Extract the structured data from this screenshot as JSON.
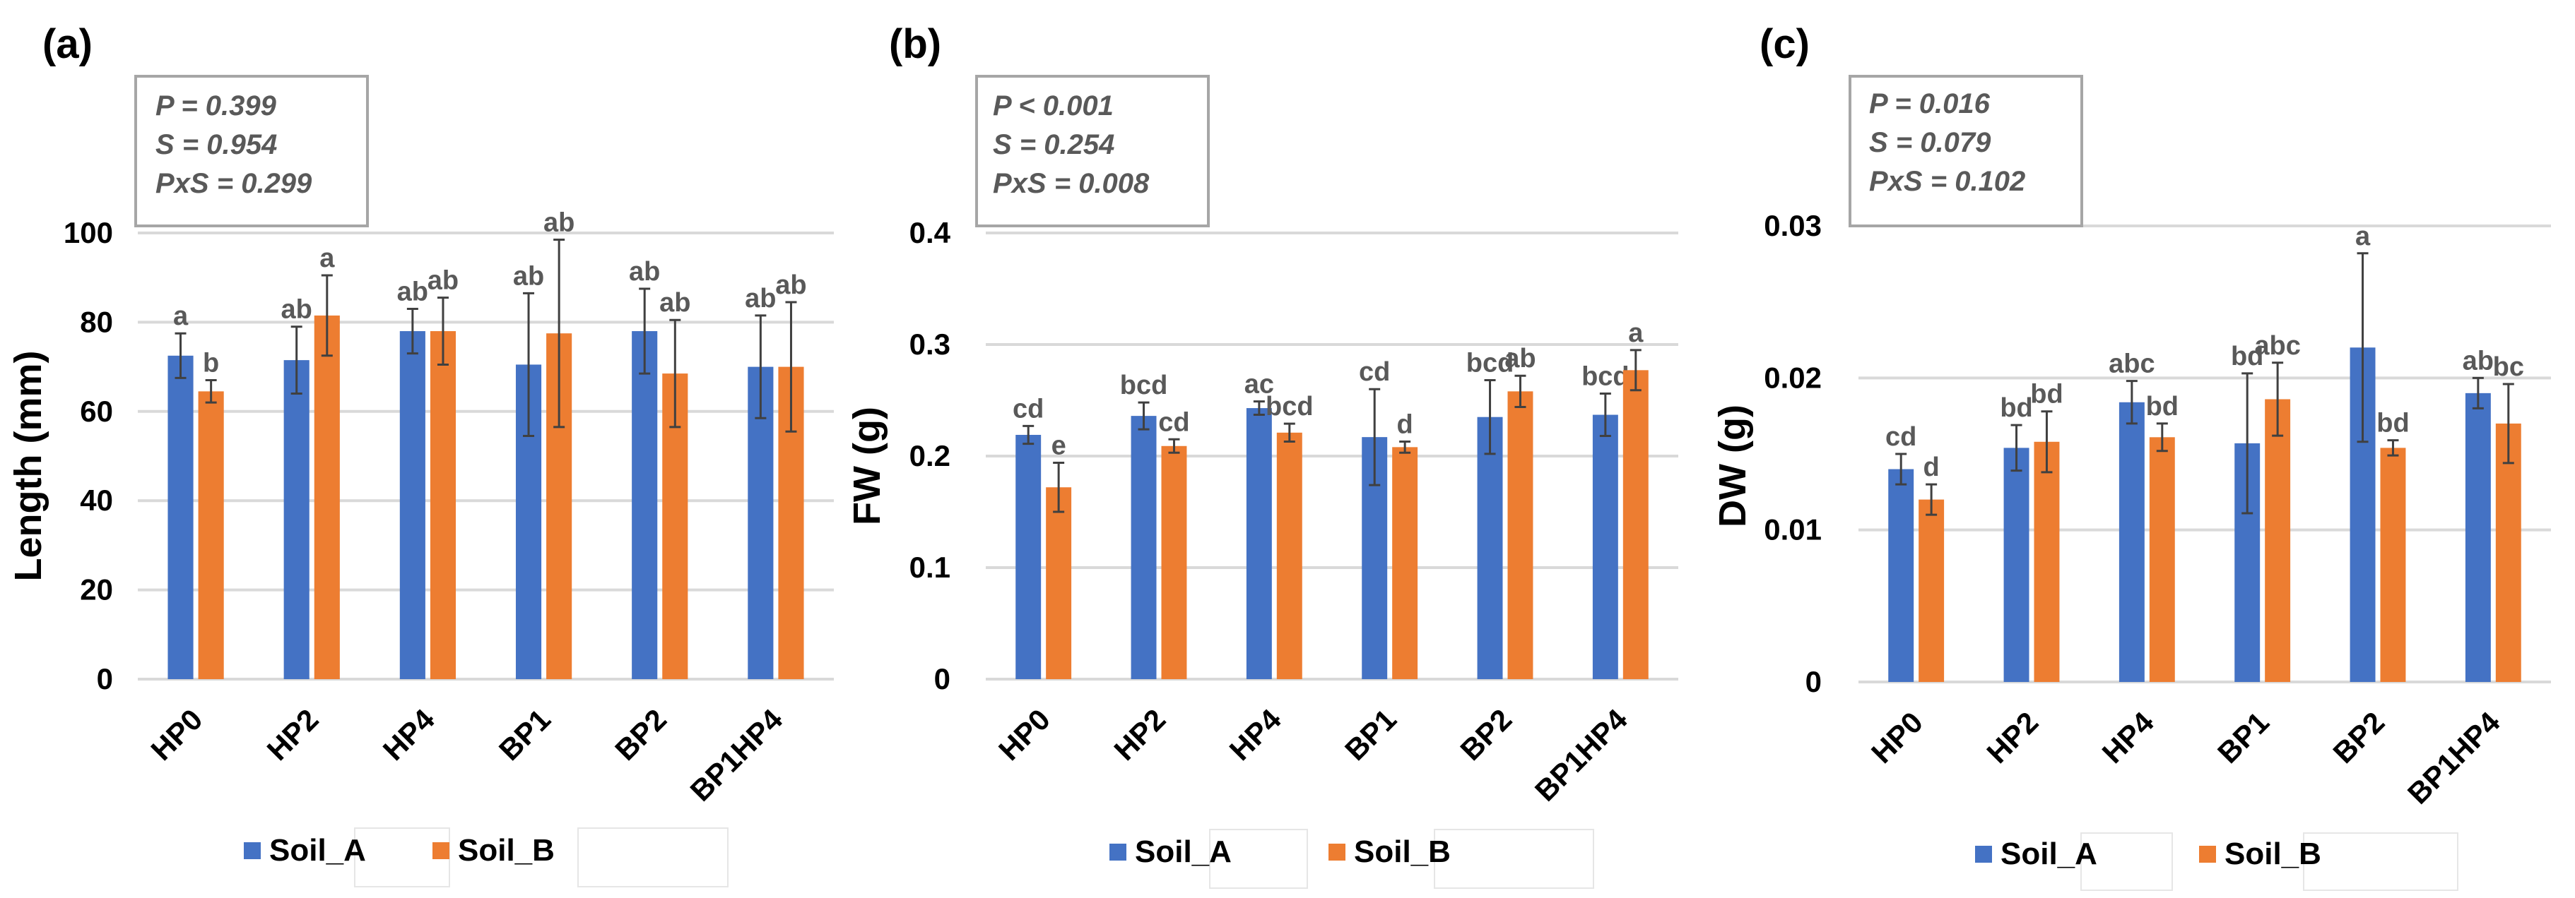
{
  "figure": {
    "colors": {
      "soil_a": "#4472C4",
      "soil_b": "#ED7D31",
      "grid": "#D9D9D9",
      "axis_text": "#000000",
      "letter_text": "#595959",
      "stats_text": "#595959",
      "box_border": "#A6A6A6"
    }
  },
  "chart_data": [
    {
      "type": "bar",
      "panel_label": "(a)",
      "title": "",
      "xlabel": "",
      "ylabel": "Length (mm)",
      "ylim": [
        0,
        100
      ],
      "yticks": [
        0,
        20,
        40,
        60,
        80,
        100
      ],
      "ytick_labels": [
        "0",
        "20",
        "40",
        "60",
        "80",
        "100"
      ],
      "grid": true,
      "legend_position": "bottom",
      "categories": [
        "HP0",
        "HP2",
        "HP4",
        "BP1",
        "BP2",
        "BP1HP4"
      ],
      "stats": [
        "P = 0.399",
        "S = 0.954",
        "PxS = 0.299"
      ],
      "series": [
        {
          "name": "Soil_A",
          "values": [
            72.5,
            71.5,
            78.0,
            70.5,
            78.0,
            70.0
          ],
          "errors": [
            5.0,
            7.5,
            5.0,
            16.0,
            9.5,
            11.5
          ],
          "letters": [
            "a",
            "ab",
            "ab",
            "ab",
            "ab",
            "ab"
          ]
        },
        {
          "name": "Soil_B",
          "values": [
            64.5,
            81.5,
            78.0,
            77.5,
            68.5,
            70.0
          ],
          "errors": [
            2.5,
            9.0,
            7.5,
            21.0,
            12.0,
            14.5
          ],
          "letters": [
            "b",
            "a",
            "ab",
            "ab",
            "ab",
            "ab"
          ]
        }
      ]
    },
    {
      "type": "bar",
      "panel_label": "(b)",
      "title": "",
      "xlabel": "",
      "ylabel": "FW (g)",
      "ylim": [
        0,
        0.4
      ],
      "yticks": [
        0,
        0.1,
        0.2,
        0.3,
        0.4
      ],
      "ytick_labels": [
        "0",
        "0.1",
        "0.2",
        "0.3",
        "0.4"
      ],
      "grid": true,
      "legend_position": "bottom",
      "categories": [
        "HP0",
        "HP2",
        "HP4",
        "BP1",
        "BP2",
        "BP1HP4"
      ],
      "stats": [
        "P < 0.001",
        "S = 0.254",
        "PxS = 0.008"
      ],
      "series": [
        {
          "name": "Soil_A",
          "values": [
            0.219,
            0.236,
            0.243,
            0.217,
            0.235,
            0.237
          ],
          "errors": [
            0.008,
            0.012,
            0.006,
            0.043,
            0.033,
            0.019
          ],
          "letters": [
            "cd",
            "bcd",
            "ac",
            "cd",
            "bcd",
            "bcd"
          ]
        },
        {
          "name": "Soil_B",
          "values": [
            0.172,
            0.209,
            0.221,
            0.208,
            0.258,
            0.277
          ],
          "errors": [
            0.022,
            0.006,
            0.008,
            0.005,
            0.014,
            0.018
          ],
          "letters": [
            "e",
            "cd",
            "bcd",
            "d",
            "ab",
            "a"
          ]
        }
      ]
    },
    {
      "type": "bar",
      "panel_label": "(c)",
      "title": "",
      "xlabel": "",
      "ylabel": "DW (g)",
      "ylim": [
        0,
        0.03
      ],
      "yticks": [
        0,
        0.01,
        0.02,
        0.03
      ],
      "ytick_labels": [
        "0",
        "0.01",
        "0.02",
        "0.03"
      ],
      "grid": true,
      "legend_position": "bottom",
      "categories": [
        "HP0",
        "HP2",
        "HP4",
        "BP1",
        "BP2",
        "BP1HP4"
      ],
      "stats": [
        "P = 0.016",
        "S = 0.079",
        "PxS = 0.102"
      ],
      "series": [
        {
          "name": "Soil_A",
          "values": [
            0.014,
            0.0154,
            0.0184,
            0.0157,
            0.022,
            0.019
          ],
          "errors": [
            0.001,
            0.0015,
            0.0014,
            0.0046,
            0.0062,
            0.001
          ],
          "letters": [
            "cd",
            "bd",
            "abc",
            "bd",
            "a",
            "ab"
          ]
        },
        {
          "name": "Soil_B",
          "values": [
            0.012,
            0.0158,
            0.0161,
            0.0186,
            0.0154,
            0.017
          ],
          "errors": [
            0.001,
            0.002,
            0.0009,
            0.0024,
            0.0005,
            0.0026
          ],
          "letters": [
            "d",
            "bd",
            "bd",
            "abc",
            "bd",
            "bc"
          ]
        }
      ]
    }
  ]
}
